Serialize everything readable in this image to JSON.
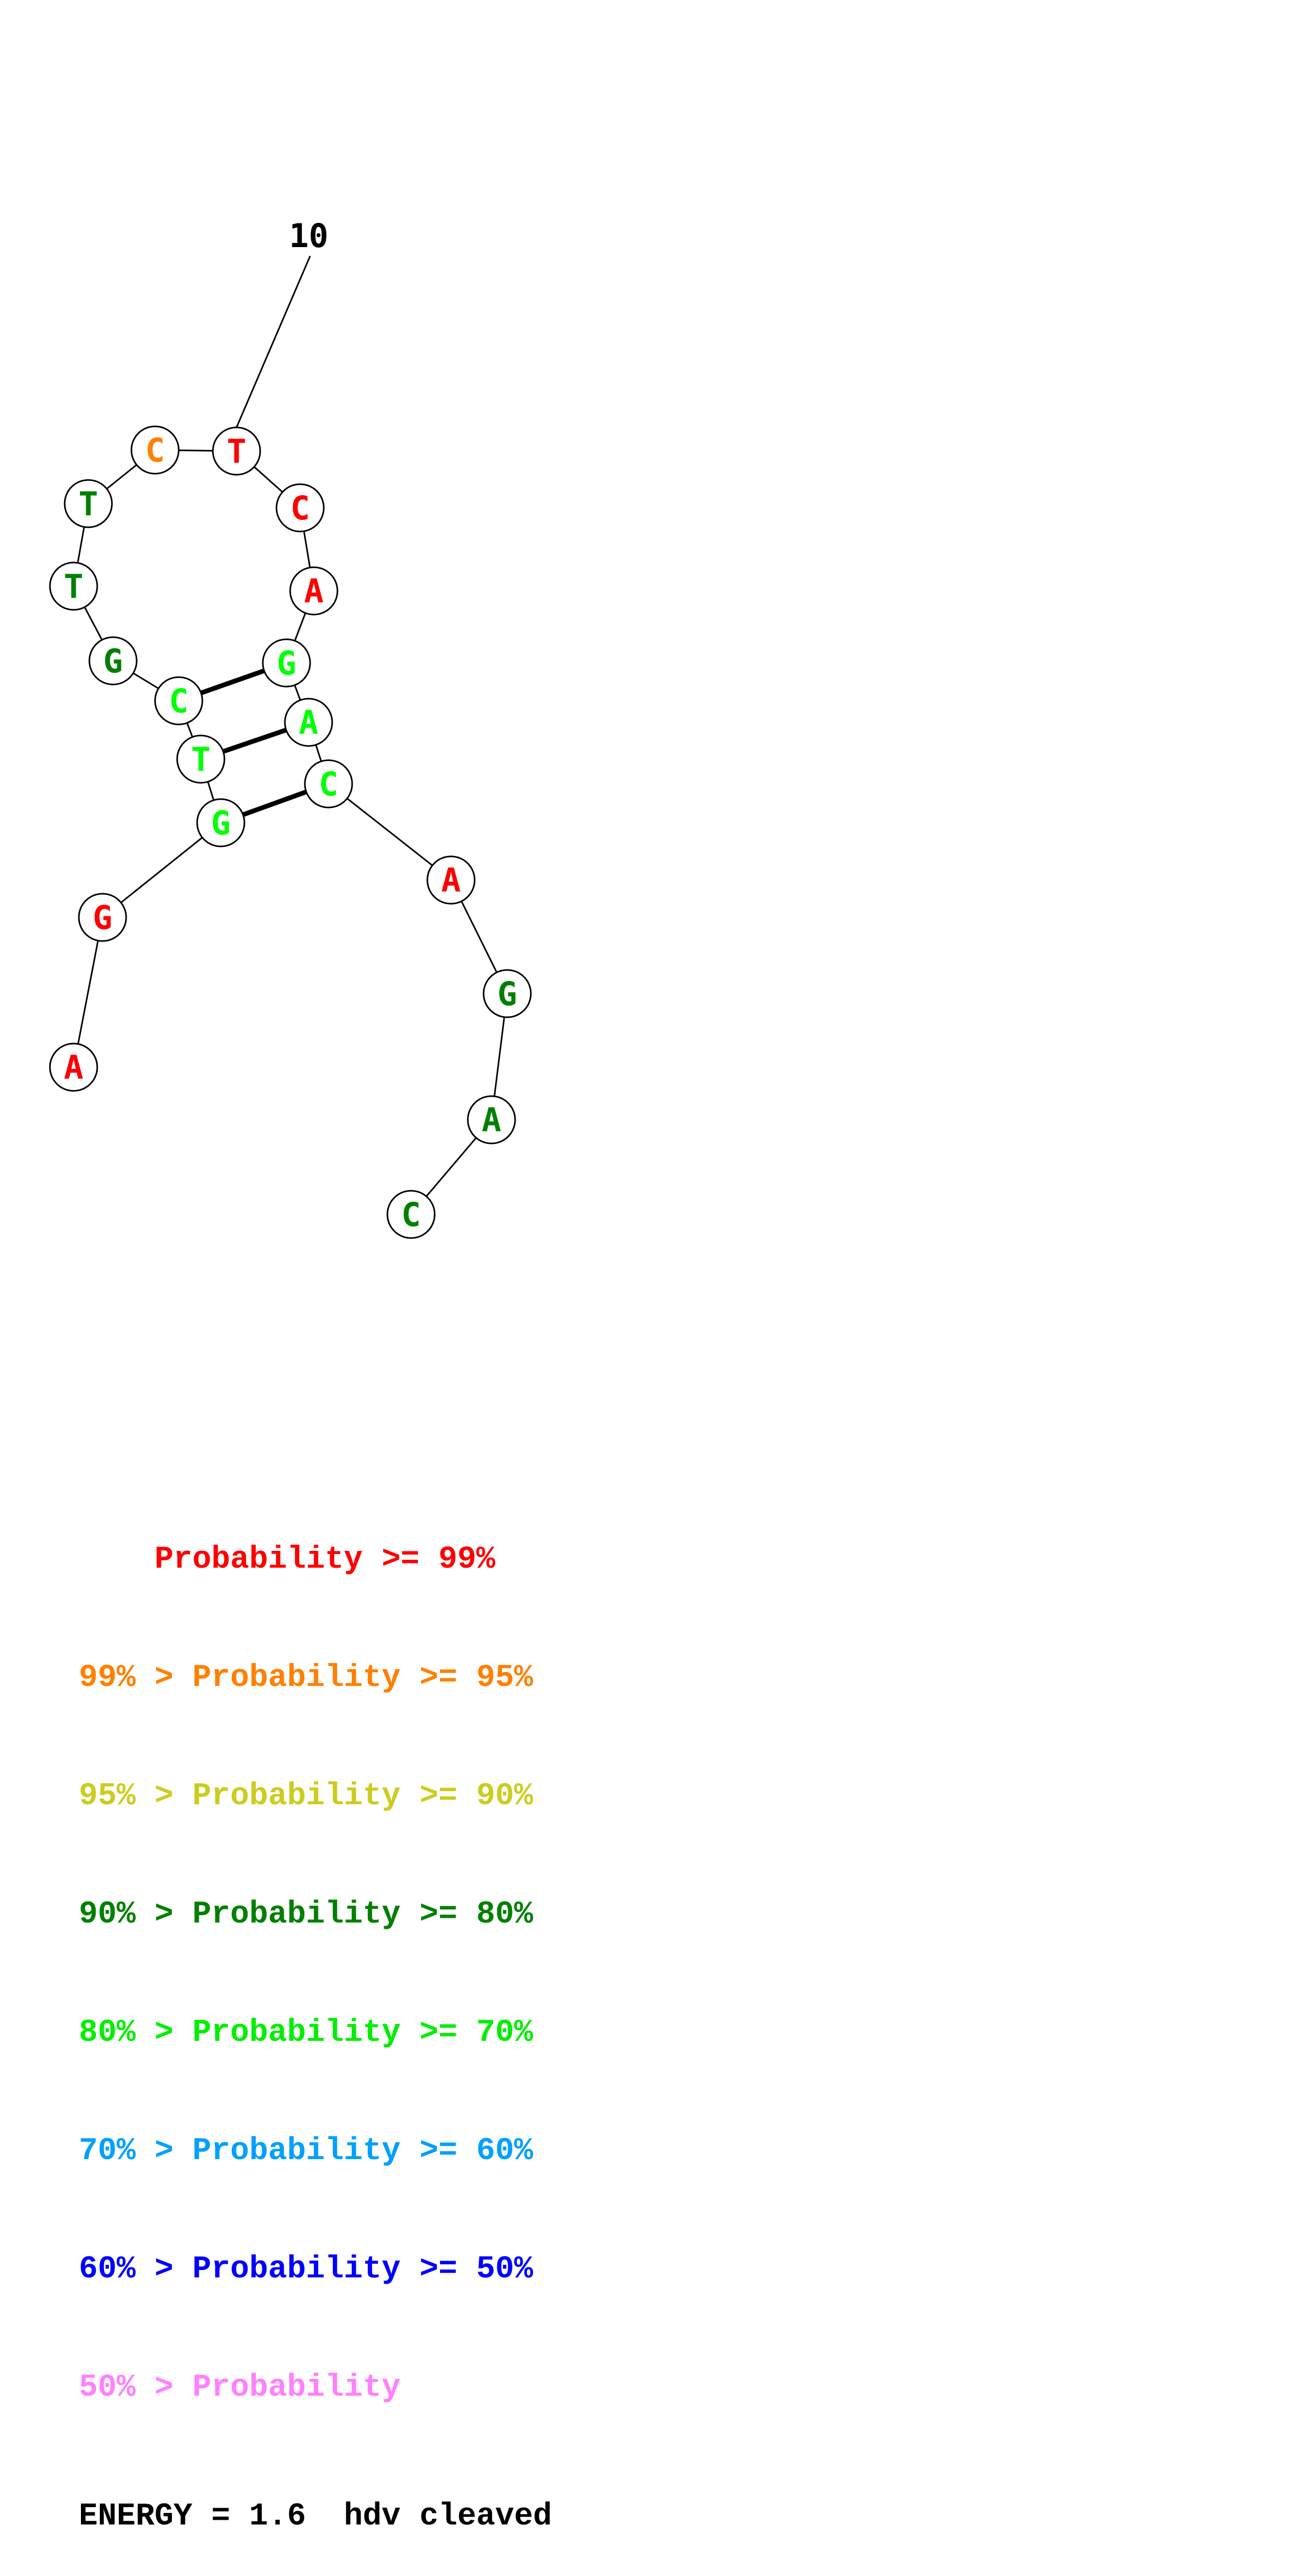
{
  "structure": {
    "position_label": "10",
    "nucleotides": [
      {
        "base": "A",
        "color": "#ff0000"
      },
      {
        "base": "G",
        "color": "#ff0000"
      },
      {
        "base": "G",
        "color": "#00ff00"
      },
      {
        "base": "T",
        "color": "#00ff00"
      },
      {
        "base": "C",
        "color": "#00ff00"
      },
      {
        "base": "G",
        "color": "#008000"
      },
      {
        "base": "T",
        "color": "#008000"
      },
      {
        "base": "T",
        "color": "#008000"
      },
      {
        "base": "C",
        "color": "#ff8000"
      },
      {
        "base": "T",
        "color": "#ff0000"
      },
      {
        "base": "C",
        "color": "#ff0000"
      },
      {
        "base": "A",
        "color": "#ff0000"
      },
      {
        "base": "G",
        "color": "#00ff00"
      },
      {
        "base": "A",
        "color": "#00ff00"
      },
      {
        "base": "C",
        "color": "#00ff00"
      },
      {
        "base": "A",
        "color": "#ff0000"
      },
      {
        "base": "G",
        "color": "#008000"
      },
      {
        "base": "A",
        "color": "#008000"
      },
      {
        "base": "C",
        "color": "#008000"
      }
    ],
    "base_pairs": [
      [
        3,
        15
      ],
      [
        4,
        14
      ],
      [
        5,
        13
      ]
    ]
  },
  "legend": {
    "items": [
      {
        "prefix": "    ",
        "label": "Probability >= 99%",
        "color": "#ff0000"
      },
      {
        "prefix": "99% > ",
        "label": "Probability >= 95%",
        "color": "#ff8000"
      },
      {
        "prefix": "95% > ",
        "label": "Probability >= 90%",
        "color": "#cccc20"
      },
      {
        "prefix": "90% > ",
        "label": "Probability >= 80%",
        "color": "#008000"
      },
      {
        "prefix": "80% > ",
        "label": "Probability >= 70%",
        "color": "#00ee00"
      },
      {
        "prefix": "70% > ",
        "label": "Probability >= 60%",
        "color": "#00a0ff"
      },
      {
        "prefix": "60% > ",
        "label": "Probability >= 50%",
        "color": "#0000ff"
      },
      {
        "prefix": "50% > ",
        "label": "Probability",
        "color": "#ff80ff"
      }
    ],
    "energy": "ENERGY = 1.6  hdv cleaved"
  }
}
